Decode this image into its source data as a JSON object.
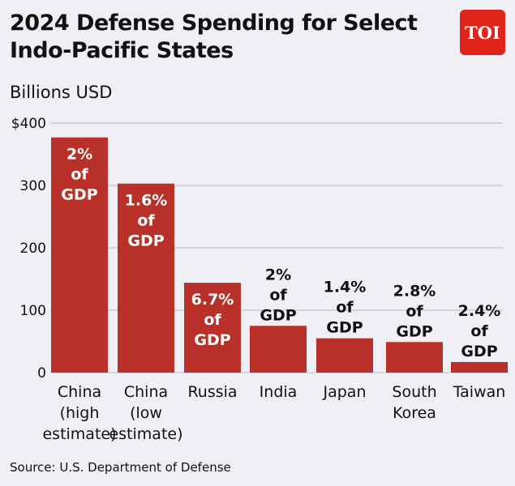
{
  "title": "2024 Defense Spending for Select Indo-Pacific States",
  "logo": "TOI",
  "source": "Source: U.S. Department of Defense",
  "colors": {
    "bar": "#b83027",
    "background": "#efeff5",
    "grid": "#b8b8c0",
    "logo": "#e0231b"
  },
  "chart_data": {
    "type": "bar",
    "ylabel": "Billions USD",
    "ylim": [
      0,
      400
    ],
    "yticks": [
      "0",
      "100",
      "200",
      "300",
      "$400"
    ],
    "grid": true,
    "categories": [
      [
        "China",
        "(high",
        "estimate)"
      ],
      [
        "China",
        "(low",
        "estimate)"
      ],
      [
        "Russia"
      ],
      [
        "India"
      ],
      [
        "Japan"
      ],
      [
        "South",
        "Korea"
      ],
      [
        "Taiwan"
      ]
    ],
    "values": [
      377,
      303,
      144,
      75,
      55,
      49,
      17
    ],
    "data_labels": [
      [
        "2%",
        "of",
        "GDP"
      ],
      [
        "1.6%",
        "of",
        "GDP"
      ],
      [
        "6.7%",
        "of",
        "GDP"
      ],
      [
        "2%",
        "of",
        "GDP"
      ],
      [
        "1.4%",
        "of",
        "GDP"
      ],
      [
        "2.8%",
        "of",
        "GDP"
      ],
      [
        "2.4%",
        "of",
        "GDP"
      ]
    ],
    "label_inside": [
      true,
      true,
      true,
      false,
      false,
      false,
      false
    ]
  }
}
